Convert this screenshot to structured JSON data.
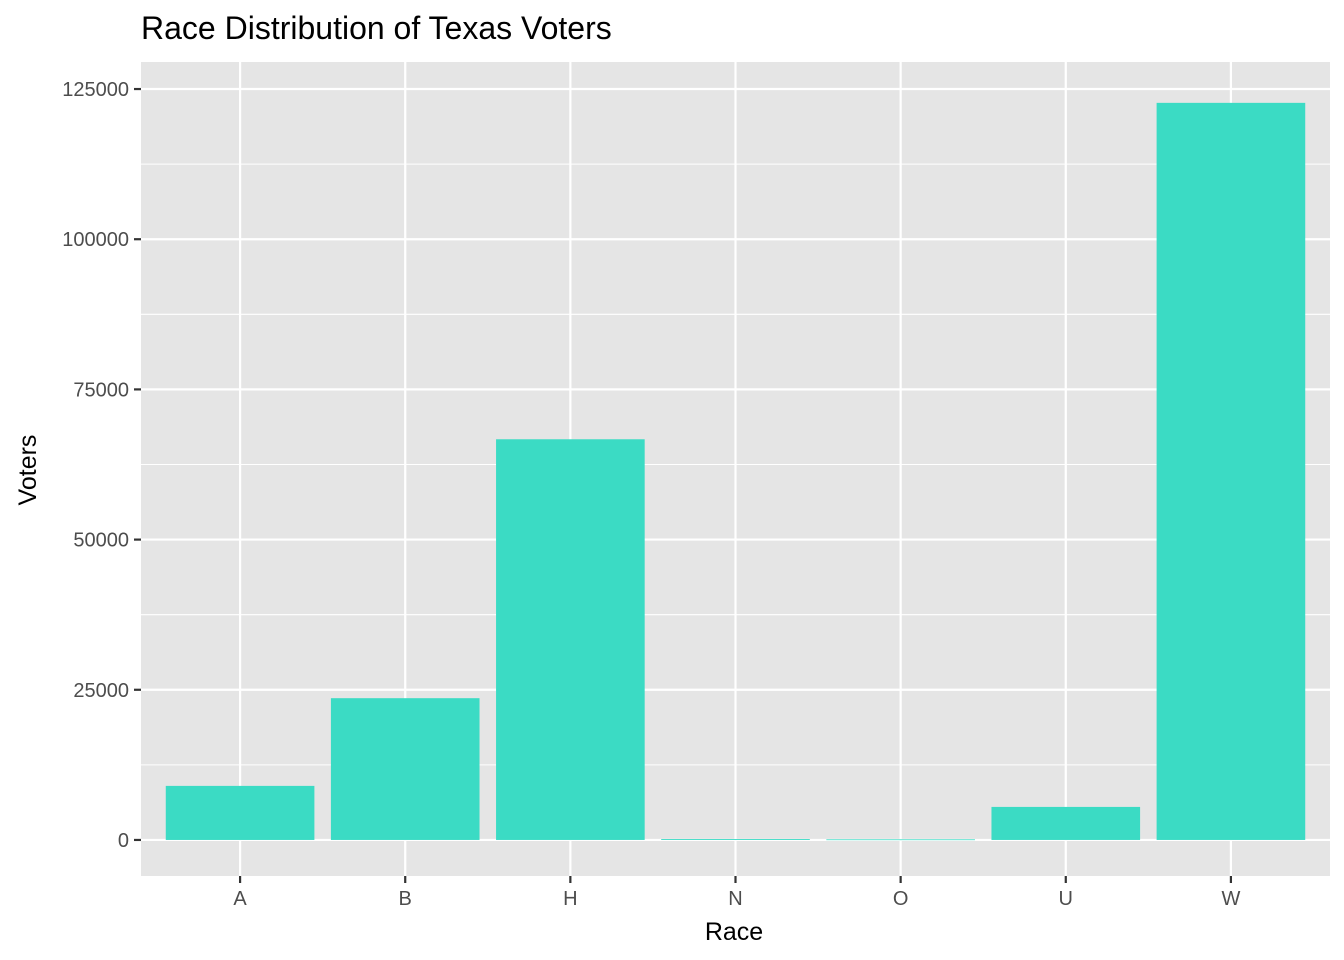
{
  "chart_data": {
    "type": "bar",
    "title": "Race Distribution of Texas Voters",
    "xlabel": "Race",
    "ylabel": "Voters",
    "categories": [
      "A",
      "B",
      "H",
      "N",
      "O",
      "U",
      "W"
    ],
    "values": [
      9000,
      23600,
      66700,
      150,
      100,
      5500,
      122700
    ],
    "ylim": [
      -6000,
      129500
    ],
    "yticks": [
      0,
      25000,
      50000,
      75000,
      100000,
      125000
    ],
    "ytick_labels": [
      "0",
      "25000",
      "50000",
      "75000",
      "100000",
      "125000"
    ],
    "grid": true,
    "legend": "none",
    "colors": {
      "bar": "#3bdbc4",
      "panel": "#e5e5e5",
      "grid": "#ffffff",
      "tick_text": "#4d4d4d",
      "tick_mark": "#333333"
    }
  }
}
